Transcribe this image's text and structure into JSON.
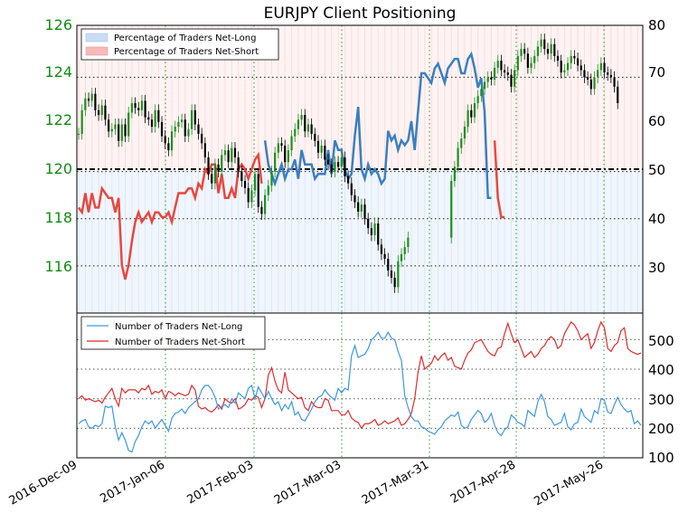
{
  "chart_data": [
    {
      "type": "line",
      "title": "EURJPY Client Positioning",
      "x_tick_labels": [
        "2016-Dec-09",
        "2017-Jan-06",
        "2017-Feb-03",
        "2017-Mar-03",
        "2017-Mar-31",
        "2017-Apr-28",
        "2017-May-26"
      ],
      "y_left_ticks": [
        "116",
        "118",
        "120",
        "122",
        "124",
        "126"
      ],
      "y_left_range": [
        114.0,
        126.2
      ],
      "y_right_ticks": [
        "30",
        "40",
        "50",
        "60",
        "70",
        "80"
      ],
      "y_right_range": [
        20,
        80
      ],
      "legend_position": "top-left",
      "legend": [
        {
          "label": "Percentage of Traders Net-Long",
          "color": "#c9dcf5"
        },
        {
          "label": "Percentage of Traders Net-Short",
          "color": "#f8b9b9"
        }
      ],
      "horizontal_levels_left_axis": [
        124.0,
        120.0,
        118.0,
        116.0
      ],
      "series": [
        {
          "name": "Percentage of Traders Net-Long",
          "color": "#3a7fc1",
          "axis": "right",
          "values": [
            null,
            null,
            null,
            null,
            null,
            null,
            null,
            null,
            null,
            null,
            null,
            null,
            null,
            null,
            null,
            null,
            null,
            null,
            null,
            null,
            null,
            null,
            null,
            null,
            null,
            null,
            null,
            null,
            null,
            null,
            null,
            null,
            null,
            null,
            null,
            null,
            null,
            null,
            null,
            null,
            null,
            null,
            null,
            null,
            null,
            null,
            null,
            null,
            null,
            null,
            null,
            null,
            null,
            null,
            null,
            null,
            56,
            51,
            49,
            47,
            49,
            51,
            48,
            50,
            50,
            52,
            48,
            54,
            51,
            51,
            51,
            48,
            49,
            49,
            49,
            54,
            49,
            56,
            54,
            54,
            50,
            48,
            49,
            57,
            63,
            50,
            48,
            51,
            49,
            50,
            49,
            47,
            48,
            58,
            56,
            57,
            54,
            56,
            55,
            56,
            60,
            54,
            62,
            70,
            70,
            69,
            68,
            71,
            72,
            70,
            68,
            71,
            72,
            73,
            73,
            70,
            70,
            73,
            74,
            71,
            67,
            69,
            62,
            44,
            44,
            null,
            null,
            null,
            null,
            null,
            null,
            null,
            null,
            null,
            null,
            null,
            null,
            null,
            null,
            null,
            null,
            null,
            null,
            null,
            null,
            null,
            null,
            null,
            null,
            null,
            null,
            null,
            null,
            null,
            null,
            null,
            null,
            null,
            null,
            null,
            null,
            null,
            null,
            null,
            null,
            null
          ]
        },
        {
          "name": "Percentage of Traders Net-Short",
          "color": "#e8473f",
          "axis": "right",
          "values": [
            42,
            41,
            45,
            41,
            45,
            42,
            42,
            46,
            45,
            44,
            44,
            41,
            44,
            30,
            27,
            30,
            35,
            39,
            41,
            39,
            40,
            41,
            39,
            41,
            41,
            40,
            40,
            41,
            39,
            42,
            45,
            45,
            45,
            46,
            46,
            44,
            47,
            46,
            50,
            49,
            51,
            51,
            45,
            49,
            44,
            44,
            46,
            44,
            50,
            51,
            50,
            48,
            50,
            52,
            53,
            47,
            null,
            null,
            null,
            null,
            null,
            null,
            null,
            null,
            null,
            null,
            null,
            null,
            null,
            null,
            null,
            null,
            null,
            null,
            null,
            null,
            null,
            null,
            null,
            null,
            null,
            null,
            null,
            null,
            null,
            null,
            null,
            null,
            null,
            null,
            null,
            null,
            null,
            null,
            null,
            null,
            null,
            null,
            null,
            null,
            null,
            null,
            null,
            null,
            null,
            null,
            null,
            null,
            null,
            null,
            null,
            null,
            null,
            null,
            null,
            null,
            null,
            null,
            null,
            null,
            null,
            null,
            null,
            null,
            null,
            56,
            44,
            40,
            40,
            null,
            null,
            null,
            null,
            null,
            null,
            null,
            null,
            null,
            null,
            null,
            null,
            null,
            null,
            null,
            null,
            null,
            null,
            null,
            null,
            null,
            null,
            null,
            null,
            null,
            null,
            null,
            null,
            null,
            null,
            null,
            null,
            null,
            null,
            null,
            null,
            null,
            null,
            null,
            null
          ]
        }
      ],
      "price_note": "candlestick OHLC price bars on the left axis"
    },
    {
      "type": "line",
      "y_ticks": [
        "100",
        "200",
        "300",
        "400",
        "500"
      ],
      "y_range": [
        100,
        590
      ],
      "legend_position": "top-left",
      "legend": [
        {
          "label": "Number of Traders Net-Long",
          "color": "#3c97e6"
        },
        {
          "label": "Number of Traders Net-Short",
          "color": "#e02b2b"
        }
      ],
      "series": [
        {
          "name": "Number of Traders Net-Long",
          "color": "#3c97e6"
        },
        {
          "name": "Number of Traders Net-Short",
          "color": "#e02b2b"
        }
      ]
    }
  ]
}
